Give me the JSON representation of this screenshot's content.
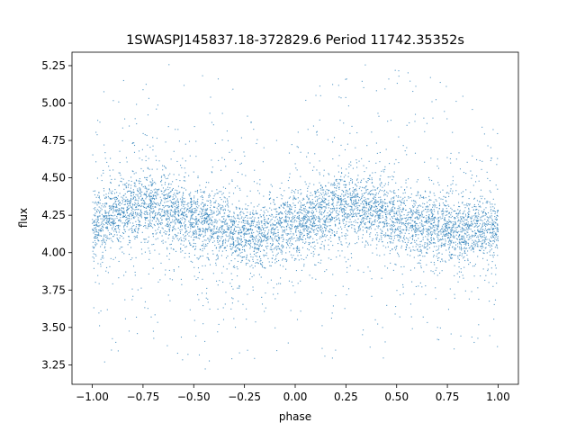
{
  "chart_data": {
    "type": "scatter",
    "title": "1SWASPJ145837.18-372829.6 Period 11742.35352s",
    "xlabel": "phase",
    "ylabel": "flux",
    "xlim": [
      -1.1,
      1.1
    ],
    "ylim": [
      3.12,
      5.34
    ],
    "xticks": [
      -1.0,
      -0.75,
      -0.5,
      -0.25,
      0.0,
      0.25,
      0.5,
      0.75,
      1.0
    ],
    "xtick_labels": [
      "−1.00",
      "−0.75",
      "−0.50",
      "−0.25",
      "0.00",
      "0.25",
      "0.50",
      "0.75",
      "1.00"
    ],
    "yticks": [
      3.25,
      3.5,
      3.75,
      4.0,
      4.25,
      4.5,
      4.75,
      5.0,
      5.25
    ],
    "ytick_labels": [
      "3.25",
      "3.50",
      "3.75",
      "4.00",
      "4.25",
      "4.50",
      "4.75",
      "5.00",
      "5.25"
    ],
    "grid": false,
    "legend": "none",
    "point_color": "#1f77b4",
    "series": [
      {
        "x": [
          -1.0,
          -0.95,
          -0.9,
          -0.85,
          -0.8,
          -0.75,
          -0.7,
          -0.65,
          -0.6,
          -0.55,
          -0.5,
          -0.45,
          -0.4,
          -0.35,
          -0.3,
          -0.25,
          -0.2,
          -0.15,
          -0.1,
          -0.05,
          0.0,
          0.05,
          0.1,
          0.15,
          0.2,
          0.25,
          0.3,
          0.35,
          0.4,
          0.45,
          0.5,
          0.55,
          0.6,
          0.65,
          0.7,
          0.75,
          0.8,
          0.85,
          0.9,
          0.95,
          1.0
        ],
        "y": [
          4.17,
          4.2,
          4.24,
          4.27,
          4.3,
          4.31,
          4.31,
          4.3,
          4.28,
          4.25,
          4.22,
          4.2,
          4.18,
          4.16,
          4.14,
          4.13,
          4.13,
          4.13,
          4.15,
          4.17,
          4.19,
          4.22,
          4.25,
          4.28,
          4.3,
          4.31,
          4.31,
          4.3,
          4.28,
          4.26,
          4.23,
          4.21,
          4.19,
          4.18,
          4.17,
          4.16,
          4.15,
          4.15,
          4.15,
          4.16,
          4.17
        ]
      }
    ]
  }
}
